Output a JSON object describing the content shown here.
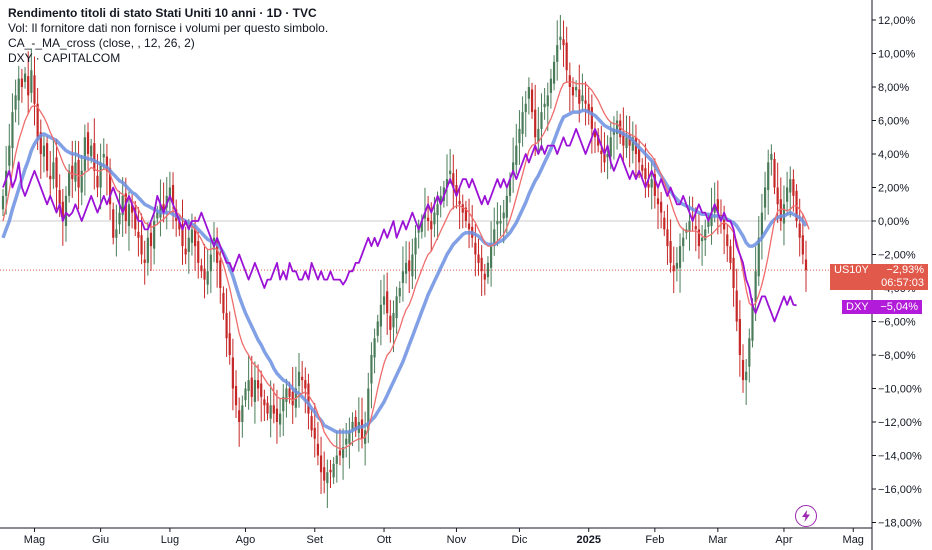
{
  "legend": {
    "title": "Rendimento titoli di stato Stati Uniti 10 anni · 1D · TVC",
    "vol": "Vol: Il fornitore dati non fornisce i volumi per questo simbolo.",
    "ma_cross": "CA_-_MA_cross (close, , 12, 26, 2)",
    "compare": "DXY · CAPITALCOM"
  },
  "badges": {
    "us10y": {
      "symbol": "US10Y",
      "value": "−2,93%",
      "countdown": "06:57:03"
    },
    "dxy": {
      "symbol": "DXY",
      "value": "−5,04%"
    }
  },
  "icons": {
    "flash": "lightning-icon"
  },
  "colors": {
    "up": "#4a7c59",
    "down": "#c62828",
    "fast_ma": "#ef6c6c",
    "slow_ma": "#6b8fe0",
    "dxy_line": "#9b12d6",
    "zero_line": "#cccccc",
    "current_line": "#e0594a"
  },
  "chart_data": {
    "type": "line",
    "y_axis": {
      "ticks": [
        12,
        10,
        8,
        6,
        4,
        2,
        0,
        -2,
        -4,
        -6,
        -8,
        -10,
        -12,
        -14,
        -16,
        -18
      ],
      "tick_labels": [
        "12,00%",
        "10,00%",
        "8,00%",
        "6,00%",
        "4,00%",
        "2,00%",
        "0,00%",
        "−2,00%",
        "−4,00%",
        "−6,00%",
        "−8,00%",
        "−10,00%",
        "−12,00%",
        "−14,00%",
        "−16,00%",
        "−18,00%"
      ],
      "ylim": [
        -18.5,
        12.5
      ]
    },
    "x_axis": {
      "tick_labels": [
        "Mag",
        "Giu",
        "Lug",
        "Ago",
        "Set",
        "Ott",
        "Nov",
        "Dic",
        "2025",
        "Feb",
        "Mar",
        "Apr",
        "Mag"
      ],
      "tick_index": [
        10,
        31,
        53,
        77,
        99,
        121,
        144,
        164,
        186,
        207,
        227,
        248,
        270
      ]
    },
    "us10y_close": [
      1.5,
      3.0,
      4.5,
      6.5,
      7.5,
      8.5,
      8.0,
      8.8,
      7.5,
      9.0,
      7.0,
      5.0,
      4.0,
      4.5,
      3.0,
      2.5,
      3.5,
      2.0,
      1.0,
      0.0,
      1.5,
      3.0,
      2.5,
      3.5,
      2.0,
      3.0,
      5.0,
      4.0,
      4.5,
      3.0,
      2.0,
      3.5,
      4.0,
      3.0,
      1.0,
      -1.0,
      -0.5,
      0.5,
      1.5,
      0.0,
      1.0,
      0.5,
      -0.5,
      -1.0,
      -2.0,
      -2.5,
      -1.0,
      -1.5,
      0.0,
      0.5,
      1.0,
      0.5,
      1.5,
      2.0,
      1.0,
      0.0,
      -0.5,
      -1.5,
      -2.0,
      -1.0,
      -0.5,
      -1.5,
      -2.5,
      -3.0,
      -3.5,
      -3.0,
      -2.0,
      -1.0,
      -2.5,
      -4.0,
      -5.5,
      -7.0,
      -8.0,
      -10.0,
      -11.0,
      -12.0,
      -11.0,
      -10.0,
      -9.5,
      -10.5,
      -9.5,
      -10.0,
      -10.5,
      -11.0,
      -11.5,
      -11.0,
      -11.5,
      -12.0,
      -11.5,
      -10.5,
      -10.0,
      -10.5,
      -11.0,
      -10.0,
      -9.0,
      -9.5,
      -10.0,
      -11.5,
      -12.5,
      -13.0,
      -14.0,
      -15.0,
      -15.5,
      -15.0,
      -15.0,
      -14.5,
      -14.0,
      -14.0,
      -13.5,
      -13.0,
      -12.5,
      -12.0,
      -12.5,
      -12.0,
      -13.0,
      -12.5,
      -10.0,
      -8.0,
      -7.0,
      -6.0,
      -5.0,
      -4.5,
      -5.5,
      -6.5,
      -5.5,
      -4.5,
      -4.0,
      -3.0,
      -2.5,
      -3.0,
      -2.0,
      -1.0,
      -0.5,
      0.0,
      0.5,
      0.0,
      -0.5,
      0.5,
      1.0,
      1.5,
      2.0,
      2.5,
      3.0,
      2.0,
      1.5,
      1.0,
      0.5,
      0.0,
      -0.5,
      -1.0,
      -2.0,
      -2.5,
      -3.0,
      -3.5,
      -2.5,
      -1.5,
      -0.5,
      0.0,
      0.0,
      0.5,
      1.5,
      2.5,
      3.5,
      4.5,
      5.5,
      6.5,
      7.0,
      8.0,
      6.5,
      5.0,
      5.5,
      6.5,
      7.0,
      7.5,
      8.5,
      9.5,
      10.5,
      11.0,
      10.5,
      9.0,
      8.0,
      7.5,
      8.0,
      7.0,
      7.5,
      7.0,
      6.5,
      5.5,
      5.0,
      4.5,
      4.0,
      3.5,
      4.0,
      5.0,
      5.5,
      6.0,
      5.0,
      4.5,
      5.0,
      4.5,
      5.0,
      4.0,
      3.5,
      3.0,
      2.5,
      2.0,
      2.5,
      1.5,
      1.0,
      0.5,
      -0.5,
      -1.5,
      -2.5,
      -3.0,
      -2.5,
      -1.5,
      -1.0,
      -0.5,
      0.0,
      0.0,
      -0.5,
      -1.5,
      -1.0,
      -0.5,
      0.0,
      0.5,
      1.0,
      0.5,
      0.0,
      -0.5,
      -1.5,
      -2.5,
      -4.0,
      -6.0,
      -8.0,
      -9.5,
      -9.0,
      -7.0,
      -5.0,
      -3.0,
      -1.0,
      0.5,
      2.0,
      3.5,
      4.0,
      2.0,
      1.0,
      0.0,
      1.0,
      2.0,
      2.5,
      1.5,
      0.0,
      -1.0,
      -2.0,
      -2.93
    ],
    "us10y_fast_ma_12": [
      0.0,
      0.8,
      1.8,
      3.0,
      4.0,
      4.8,
      5.4,
      6.0,
      6.4,
      6.8,
      6.9,
      6.8,
      6.5,
      6.2,
      5.8,
      5.3,
      4.9,
      4.5,
      4.0,
      3.5,
      3.1,
      2.9,
      2.8,
      2.8,
      2.7,
      2.7,
      2.9,
      3.0,
      3.2,
      3.1,
      3.0,
      3.0,
      3.1,
      3.1,
      2.8,
      2.3,
      1.9,
      1.7,
      1.6,
      1.4,
      1.3,
      1.2,
      1.0,
      0.7,
      0.3,
      -0.1,
      -0.2,
      -0.4,
      -0.3,
      -0.2,
      0.0,
      0.1,
      0.3,
      0.5,
      0.6,
      0.5,
      0.4,
      0.1,
      -0.2,
      -0.3,
      -0.3,
      -0.5,
      -0.8,
      -1.1,
      -1.5,
      -1.7,
      -1.7,
      -1.6,
      -1.7,
      -2.1,
      -2.6,
      -3.3,
      -4.0,
      -4.9,
      -5.8,
      -6.7,
      -7.3,
      -7.7,
      -8.0,
      -8.4,
      -8.6,
      -8.8,
      -9.1,
      -9.4,
      -9.7,
      -9.9,
      -10.2,
      -10.5,
      -10.6,
      -10.6,
      -10.6,
      -10.6,
      -10.7,
      -10.6,
      -10.4,
      -10.3,
      -10.2,
      -10.4,
      -10.7,
      -11.0,
      -11.5,
      -12.0,
      -12.6,
      -12.9,
      -13.2,
      -13.4,
      -13.5,
      -13.6,
      -13.6,
      -13.5,
      -13.4,
      -13.2,
      -13.1,
      -13.0,
      -13.0,
      -12.9,
      -12.4,
      -11.7,
      -10.9,
      -10.0,
      -9.2,
      -8.5,
      -8.0,
      -7.8,
      -7.4,
      -6.9,
      -6.4,
      -5.8,
      -5.3,
      -5.0,
      -4.5,
      -3.9,
      -3.4,
      -2.9,
      -2.4,
      -2.0,
      -1.8,
      -1.4,
      -1.0,
      -0.6,
      -0.2,
      0.2,
      0.6,
      0.8,
      0.9,
      0.9,
      0.8,
      0.7,
      0.5,
      0.2,
      -0.1,
      -0.5,
      -0.9,
      -1.3,
      -1.5,
      -1.5,
      -1.4,
      -1.2,
      -1.0,
      -0.8,
      -0.4,
      0.1,
      0.7,
      1.4,
      2.1,
      2.8,
      3.5,
      4.2,
      4.5,
      4.6,
      4.7,
      5.0,
      5.3,
      5.7,
      6.1,
      6.6,
      7.2,
      7.8,
      8.2,
      8.3,
      8.3,
      8.3,
      8.2,
      8.2,
      8.2,
      8.2,
      8.0,
      7.8,
      7.5,
      7.2,
      6.8,
      6.4,
      6.1,
      5.9,
      5.8,
      5.8,
      5.6,
      5.4,
      5.3,
      5.2,
      5.1,
      5.0,
      4.8,
      4.6,
      4.4,
      4.1,
      3.9,
      3.6,
      3.2,
      2.8,
      2.3,
      1.8,
      1.2,
      0.6,
      0.1,
      -0.3,
      -0.5,
      -0.6,
      -0.6,
      -0.6,
      -0.6,
      -0.7,
      -0.9,
      -1.0,
      -0.9,
      -0.8,
      -0.6,
      -0.4,
      -0.2,
      -0.1,
      -0.2,
      -0.4,
      -0.7,
      -1.2,
      -2.0,
      -3.0,
      -4.1,
      -4.9,
      -5.1,
      -4.9,
      -4.4,
      -3.8,
      -3.0,
      -2.1,
      -1.0,
      0.0,
      0.6,
      0.7,
      0.7,
      0.6,
      0.7,
      0.9,
      0.9,
      0.7,
      0.4,
      0.0,
      -0.5
    ],
    "us10y_slow_ma_26": [
      -1.0,
      -0.5,
      0.0,
      0.7,
      1.3,
      1.9,
      2.5,
      3.1,
      3.6,
      4.2,
      4.6,
      4.9,
      5.1,
      5.2,
      5.1,
      5.0,
      4.9,
      4.8,
      4.6,
      4.4,
      4.2,
      4.1,
      4.0,
      4.0,
      3.9,
      3.8,
      3.8,
      3.7,
      3.7,
      3.6,
      3.5,
      3.4,
      3.3,
      3.2,
      3.0,
      2.8,
      2.6,
      2.4,
      2.3,
      2.1,
      1.9,
      1.7,
      1.6,
      1.4,
      1.2,
      1.0,
      0.9,
      0.8,
      0.7,
      0.6,
      0.5,
      0.5,
      0.5,
      0.5,
      0.4,
      0.3,
      0.2,
      0.1,
      0.0,
      -0.1,
      -0.2,
      -0.3,
      -0.5,
      -0.7,
      -0.9,
      -1.1,
      -1.2,
      -1.3,
      -1.4,
      -1.6,
      -1.9,
      -2.3,
      -2.8,
      -3.3,
      -3.9,
      -4.5,
      -5.0,
      -5.5,
      -5.9,
      -6.3,
      -6.7,
      -7.1,
      -7.4,
      -7.8,
      -8.1,
      -8.4,
      -8.8,
      -9.1,
      -9.3,
      -9.5,
      -9.6,
      -9.8,
      -10.0,
      -10.2,
      -10.3,
      -10.5,
      -10.7,
      -10.9,
      -11.2,
      -11.4,
      -11.7,
      -11.9,
      -12.2,
      -12.3,
      -12.4,
      -12.5,
      -12.6,
      -12.6,
      -12.6,
      -12.6,
      -12.6,
      -12.5,
      -12.4,
      -12.3,
      -12.3,
      -12.2,
      -12.1,
      -11.9,
      -11.7,
      -11.4,
      -11.1,
      -10.8,
      -10.4,
      -10.0,
      -9.6,
      -9.2,
      -8.8,
      -8.4,
      -7.9,
      -7.4,
      -6.9,
      -6.4,
      -5.9,
      -5.4,
      -4.9,
      -4.4,
      -4.0,
      -3.6,
      -3.2,
      -2.8,
      -2.4,
      -2.0,
      -1.7,
      -1.4,
      -1.2,
      -1.0,
      -0.8,
      -0.7,
      -0.7,
      -0.7,
      -0.8,
      -0.9,
      -1.1,
      -1.3,
      -1.4,
      -1.4,
      -1.4,
      -1.3,
      -1.2,
      -1.1,
      -0.9,
      -0.7,
      -0.4,
      -0.1,
      0.3,
      0.7,
      1.1,
      1.6,
      2.0,
      2.4,
      2.7,
      3.1,
      3.5,
      3.9,
      4.3,
      4.8,
      5.3,
      5.8,
      6.2,
      6.3,
      6.4,
      6.5,
      6.5,
      6.5,
      6.6,
      6.6,
      6.5,
      6.4,
      6.3,
      6.1,
      5.9,
      5.7,
      5.6,
      5.5,
      5.4,
      5.4,
      5.3,
      5.2,
      5.1,
      5.0,
      4.8,
      4.6,
      4.4,
      4.2,
      4.0,
      3.8,
      3.6,
      3.3,
      3.0,
      2.7,
      2.4,
      2.1,
      1.8,
      1.5,
      1.3,
      1.1,
      1.0,
      0.9,
      0.8,
      0.7,
      0.6,
      0.5,
      0.4,
      0.4,
      0.4,
      0.3,
      0.3,
      0.3,
      0.2,
      0.2,
      0.1,
      0.0,
      -0.1,
      -0.3,
      -0.6,
      -0.9,
      -1.3,
      -1.5,
      -1.5,
      -1.4,
      -1.2,
      -1.0,
      -0.7,
      -0.4,
      -0.1,
      0.1,
      0.2,
      0.3,
      0.3,
      0.4,
      0.5,
      0.4,
      0.3,
      0.2,
      0.0,
      -0.3
    ],
    "dxy": [
      2.0,
      2.5,
      3.0,
      2.0,
      2.5,
      3.5,
      2.0,
      1.5,
      2.0,
      2.5,
      3.0,
      2.5,
      2.0,
      1.5,
      1.0,
      1.5,
      1.0,
      0.5,
      1.0,
      0.0,
      0.5,
      0.3,
      0.5,
      1.0,
      0.5,
      0.0,
      0.5,
      1.0,
      1.5,
      1.0,
      0.5,
      1.0,
      1.5,
      1.0,
      1.5,
      2.0,
      1.5,
      1.0,
      0.5,
      1.0,
      1.5,
      1.0,
      0.5,
      0.0,
      0.0,
      -0.5,
      -0.5,
      0.0,
      0.5,
      1.5,
      1.0,
      0.5,
      1.0,
      1.5,
      1.0,
      0.5,
      0.0,
      -0.5,
      0.0,
      -0.5,
      0.0,
      0.0,
      0.0,
      0.5,
      0.0,
      -0.5,
      -1.0,
      -1.5,
      -1.0,
      -1.5,
      -2.0,
      -2.5,
      -2.5,
      -3.0,
      -2.5,
      -2.0,
      -2.5,
      -3.0,
      -3.5,
      -3.0,
      -2.5,
      -3.0,
      -3.5,
      -4.0,
      -3.5,
      -3.5,
      -3.0,
      -2.5,
      -3.5,
      -3.0,
      -3.5,
      -2.5,
      -3.0,
      -3.0,
      -3.5,
      -3.5,
      -3.0,
      -3.5,
      -2.5,
      -3.0,
      -3.5,
      -3.0,
      -3.5,
      -3.5,
      -3.0,
      -3.5,
      -3.5,
      -3.5,
      -3.8,
      -3.5,
      -3.0,
      -3.0,
      -2.5,
      -2.5,
      -2.0,
      -1.5,
      -1.0,
      -1.5,
      -1.0,
      -1.5,
      -1.0,
      -0.5,
      -1.0,
      -0.5,
      0.0,
      -1.0,
      -0.5,
      0.0,
      -0.5,
      0.0,
      0.5,
      0.0,
      -0.5,
      0.0,
      0.5,
      1.0,
      0.5,
      1.0,
      1.5,
      1.0,
      1.5,
      2.0,
      2.5,
      2.0,
      1.5,
      2.0,
      2.5,
      2.5,
      2.0,
      2.5,
      2.0,
      1.5,
      1.0,
      1.5,
      1.0,
      1.5,
      2.0,
      2.5,
      2.0,
      2.5,
      2.0,
      2.5,
      3.0,
      2.5,
      3.0,
      3.5,
      4.0,
      3.5,
      4.0,
      4.5,
      4.0,
      4.5,
      4.0,
      4.5,
      4.5,
      4.5,
      4.0,
      4.5,
      5.0,
      4.5,
      4.5,
      5.0,
      5.5,
      5.0,
      4.5,
      4.0,
      4.5,
      5.0,
      5.5,
      5.0,
      4.5,
      4.0,
      4.5,
      3.5,
      3.0,
      3.5,
      4.0,
      3.5,
      3.0,
      2.5,
      3.0,
      2.5,
      3.0,
      2.5,
      2.0,
      2.5,
      3.0,
      2.5,
      2.0,
      2.5,
      2.0,
      1.5,
      2.0,
      1.5,
      1.0,
      1.0,
      1.5,
      1.0,
      0.5,
      0.0,
      0.5,
      1.0,
      0.5,
      0.5,
      0.0,
      0.5,
      1.0,
      0.5,
      0.0,
      0.5,
      0.0,
      0.0,
      -0.5,
      -1.5,
      -2.0,
      -2.5,
      -3.5,
      -4.0,
      -5.0,
      -5.5,
      -5.0,
      -4.5,
      -4.5,
      -5.0,
      -5.5,
      -6.0,
      -5.5,
      -5.0,
      -4.5,
      -5.0,
      -4.5,
      -5.0,
      -5.04
    ]
  }
}
